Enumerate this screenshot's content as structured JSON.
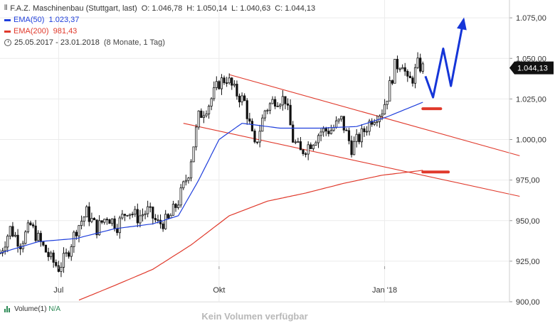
{
  "legend": {
    "instrument": "F.A.Z. Maschinenbau (Stuttgart, last)",
    "open_label": "O:",
    "open": "1.046,78",
    "high_label": "H:",
    "high": "1.050,14",
    "low_label": "L:",
    "low": "1.040,63",
    "close_label": "C:",
    "close": "1.044,13",
    "ema50_label": "EMA(50)",
    "ema50_value": "1.023,37",
    "ema200_label": "EMA(200)",
    "ema200_value": "981,43",
    "period": "25.05.2017 - 23.01.2018",
    "period_note": "(8 Monate, 1 Tag)",
    "icons": {
      "ohlc": "ohlc-bars-icon",
      "period": "clock-icon"
    }
  },
  "volume_pane": {
    "label": "Volume(1)",
    "value": "N/A",
    "message": "Kein Volumen verfügbar",
    "icon": "volume-bars-icon"
  },
  "colors": {
    "price": "#111111",
    "ema50": "#1f3fdc",
    "ema200": "#e0392b",
    "channel": "#e0392b",
    "arrow": "#1535d8",
    "marker": "#e0392b",
    "last_price_bg": "#111111",
    "grid": "#ebebeb"
  },
  "chart_data": {
    "type": "candlestick",
    "y_axis": {
      "ticks": [
        "1.075,00",
        "1.050,00",
        "1.025,00",
        "1.000,00",
        "975,00",
        "950,00",
        "925,00",
        "900,00"
      ],
      "tick_values": [
        1075,
        1050,
        1025,
        1000,
        975,
        950,
        925,
        900
      ],
      "range": [
        900,
        1086
      ],
      "position": "right"
    },
    "x_axis": {
      "ticks": [
        {
          "label": "Jul",
          "index": 23
        },
        {
          "label": "Okt",
          "index": 86
        },
        {
          "label": "Jan '18",
          "index": 151
        }
      ],
      "range": [
        0,
        200
      ]
    },
    "last_price": {
      "label": "1.044,13",
      "value": 1044.13
    },
    "price": {
      "name": "F.A.Z. Maschinenbau",
      "anchors": [
        [
          0,
          930
        ],
        [
          4,
          945
        ],
        [
          8,
          936
        ],
        [
          12,
          947
        ],
        [
          16,
          936
        ],
        [
          20,
          926
        ],
        [
          23,
          921
        ],
        [
          26,
          928
        ],
        [
          30,
          945
        ],
        [
          34,
          955
        ],
        [
          38,
          945
        ],
        [
          42,
          953
        ],
        [
          46,
          947
        ],
        [
          50,
          957
        ],
        [
          54,
          952
        ],
        [
          58,
          956
        ],
        [
          62,
          948
        ],
        [
          66,
          950
        ],
        [
          70,
          962
        ],
        [
          74,
          980
        ],
        [
          78,
          1014
        ],
        [
          82,
          1022
        ],
        [
          86,
          1035
        ],
        [
          89,
          1038
        ],
        [
          92,
          1030
        ],
        [
          96,
          1023
        ],
        [
          100,
          995
        ],
        [
          104,
          1018
        ],
        [
          108,
          1025
        ],
        [
          112,
          1025
        ],
        [
          115,
          1000
        ],
        [
          118,
          992
        ],
        [
          122,
          998
        ],
        [
          126,
          1005
        ],
        [
          130,
          1006
        ],
        [
          134,
          1012
        ],
        [
          138,
          995
        ],
        [
          142,
          1003
        ],
        [
          146,
          1013
        ],
        [
          150,
          1018
        ],
        [
          152,
          1027
        ],
        [
          155,
          1045
        ],
        [
          158,
          1048
        ],
        [
          160,
          1035
        ],
        [
          162,
          1038
        ],
        [
          164,
          1046
        ],
        [
          166,
          1044
        ]
      ]
    },
    "ema50": {
      "name": "EMA(50)",
      "anchors": [
        [
          0,
          930
        ],
        [
          15,
          937
        ],
        [
          30,
          939
        ],
        [
          45,
          945
        ],
        [
          60,
          948
        ],
        [
          70,
          953
        ],
        [
          78,
          975
        ],
        [
          86,
          1000
        ],
        [
          95,
          1010
        ],
        [
          110,
          1007
        ],
        [
          125,
          1007
        ],
        [
          140,
          1008
        ],
        [
          152,
          1014
        ],
        [
          166,
          1023
        ]
      ]
    },
    "ema200": {
      "name": "EMA(200)",
      "anchors": [
        [
          31,
          901
        ],
        [
          45,
          910
        ],
        [
          60,
          920
        ],
        [
          75,
          935
        ],
        [
          90,
          953
        ],
        [
          105,
          962
        ],
        [
          120,
          967
        ],
        [
          135,
          973
        ],
        [
          150,
          978
        ],
        [
          166,
          981
        ]
      ]
    },
    "channel": {
      "upper": [
        [
          90,
          1040
        ],
        [
          204,
          990
        ]
      ],
      "lower": [
        [
          72,
          1010
        ],
        [
          204,
          965
        ]
      ]
    },
    "projection_arrow": [
      [
        167,
        1039
      ],
      [
        170,
        1026
      ],
      [
        174,
        1056
      ],
      [
        177,
        1033
      ],
      [
        182,
        1074
      ]
    ],
    "markers": [
      {
        "x1": 166,
        "x2": 173,
        "y": 1019
      },
      {
        "x1": 166,
        "x2": 176,
        "y": 980
      }
    ]
  }
}
